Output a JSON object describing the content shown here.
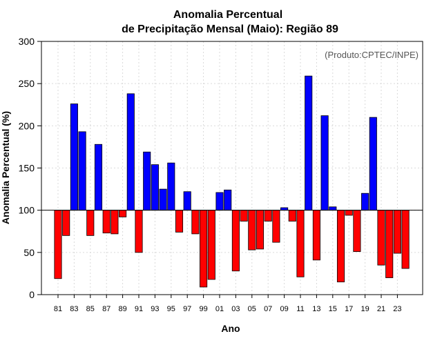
{
  "chart_data": {
    "type": "bar",
    "title": "Anomalia Percentual",
    "subtitle": "de Precipitação Mensal (Maio): Região 89",
    "xlabel": "Ano",
    "ylabel": "Anomalia Percentual (%)",
    "annotation": "(Produto:CPTEC/INPE)",
    "ylim": [
      0,
      300
    ],
    "yticks": [
      0,
      50,
      100,
      150,
      200,
      250,
      300
    ],
    "baseline": 100,
    "grid": true,
    "colors": {
      "above": "#0000ff",
      "below": "#ff0000",
      "edge": "#000000"
    },
    "x": [
      "1981",
      "1982",
      "1983",
      "1984",
      "1985",
      "1986",
      "1987",
      "1988",
      "1989",
      "1990",
      "1991",
      "1992",
      "1993",
      "1994",
      "1995",
      "1996",
      "1997",
      "1998",
      "1999",
      "2000",
      "2001",
      "2002",
      "2003",
      "2004",
      "2005",
      "2006",
      "2007",
      "2008",
      "2009",
      "2010",
      "2011",
      "2012",
      "2013",
      "2014",
      "2015",
      "2016",
      "2017",
      "2018",
      "2019",
      "2020",
      "2021",
      "2022",
      "2023",
      "2024"
    ],
    "xtick_labels": [
      "81",
      "83",
      "85",
      "87",
      "89",
      "91",
      "93",
      "95",
      "97",
      "99",
      "01",
      "03",
      "05",
      "07",
      "09",
      "11",
      "13",
      "15",
      "17",
      "19",
      "21",
      "23"
    ],
    "values": [
      19,
      70,
      226,
      193,
      70,
      178,
      73,
      72,
      92,
      238,
      50,
      169,
      154,
      125,
      156,
      74,
      122,
      72,
      9,
      18,
      121,
      124,
      28,
      87,
      53,
      54,
      87,
      62,
      103,
      87,
      21,
      259,
      41,
      212,
      104,
      15,
      94,
      51,
      120,
      210,
      35,
      20,
      49,
      31
    ]
  }
}
